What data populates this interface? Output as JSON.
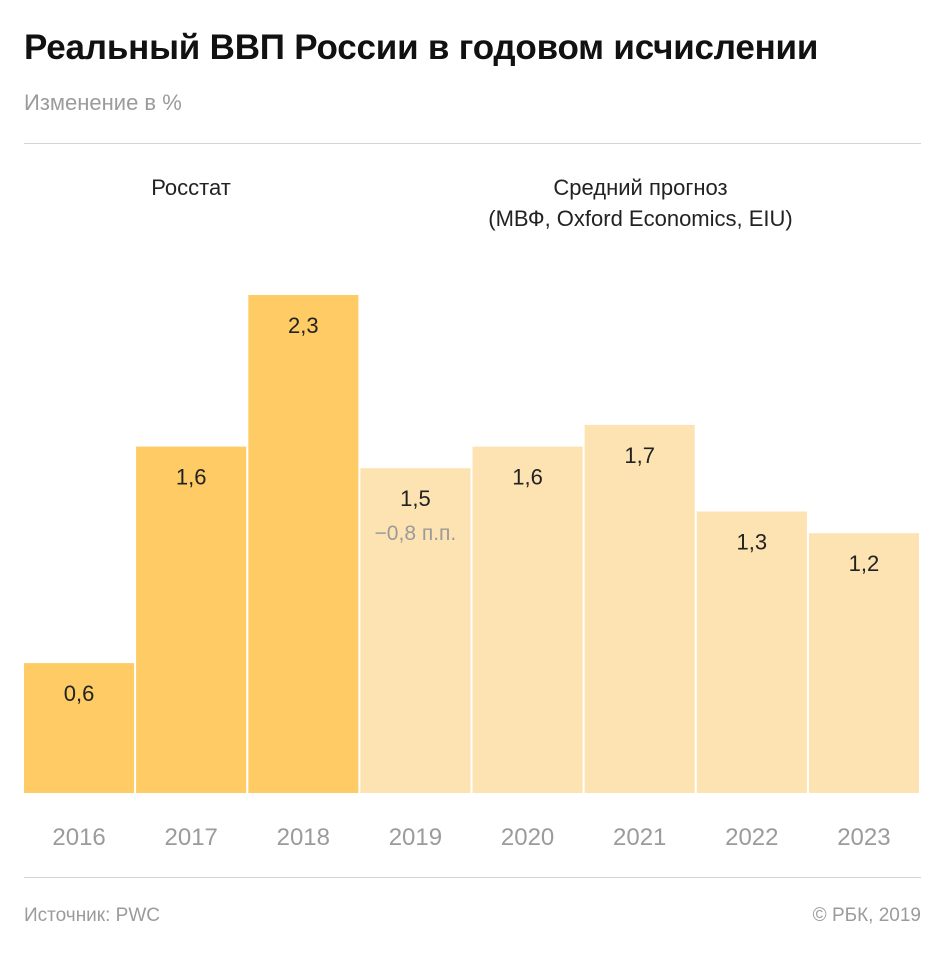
{
  "header": {
    "title": "Реальный ВВП России в годовом исчислении",
    "subtitle": "Изменение в %"
  },
  "groups": {
    "actual_label": "Росстат",
    "forecast_label_line1": "Средний прогноз",
    "forecast_label_line2": "(МВФ, Oxford Economics, EIU)"
  },
  "footer": {
    "source": "Источник: PWC",
    "copyright": "© РБК, 2019"
  },
  "colors": {
    "actual": "#fecb64",
    "forecast": "#fde3b1"
  },
  "chart_data": {
    "type": "bar",
    "categories": [
      "2016",
      "2017",
      "2018",
      "2019",
      "2020",
      "2021",
      "2022",
      "2023"
    ],
    "values": [
      0.6,
      1.6,
      2.3,
      1.5,
      1.6,
      1.7,
      1.3,
      1.2
    ],
    "value_labels": [
      "0,6",
      "1,6",
      "2,3",
      "1,5",
      "1,6",
      "1,7",
      "1,3",
      "1,2"
    ],
    "series_kind": [
      "actual",
      "actual",
      "actual",
      "forecast",
      "forecast",
      "forecast",
      "forecast",
      "forecast"
    ],
    "annotations": [
      {
        "category": "2019",
        "text": "−0,8 п.п."
      }
    ],
    "ylim": [
      0,
      2.3
    ],
    "xlabel": "",
    "ylabel": "",
    "grid": false,
    "legend": "none"
  }
}
